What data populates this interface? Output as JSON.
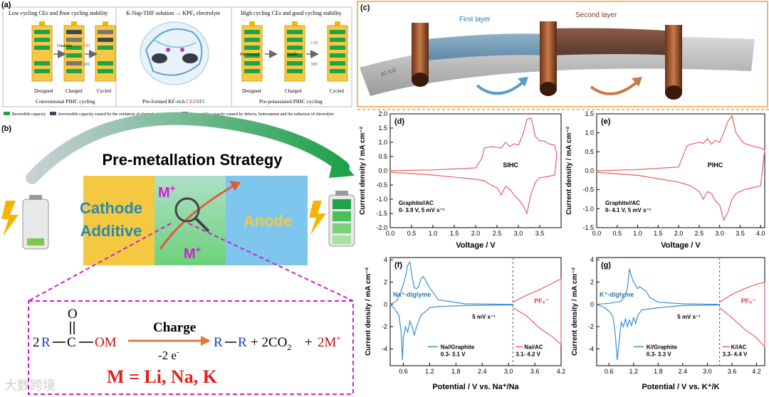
{
  "panel_a": {
    "label": "(a)",
    "col1": {
      "title": "Low cycling CEs and Poor cycling stability",
      "states": [
        "Designed",
        "Charged",
        "Cycled"
      ],
      "caption": "Conventional PIHC cycling",
      "unstable": "Unstable",
      "cei": "CEI",
      "sei": "SEI"
    },
    "col2": {
      "title": "K-Nap-THF solution → KPF₆ electrolyte",
      "caption_a": "Pre-formed KF-rich ",
      "caption_cei": "CEI",
      "caption_sep": "/",
      "caption_sei": "SEI"
    },
    "col3": {
      "title": "High cycling CEs and good cycling stability",
      "states": [
        "Designed",
        "Charged",
        "Cycled"
      ],
      "caption": "Pre-potassiated PIHC cycling",
      "preformed": "Pre-formed",
      "stable": "Stable",
      "cei": "CEI",
      "sei": "SEI"
    },
    "legend": [
      "Reversible capacity",
      "Irreversible capacity caused by the oxidation of electrolyte",
      "Irreversible capacity caused by defects, heteroatoms and the reduction of electrolyte"
    ]
  },
  "panel_b": {
    "label": "(b)",
    "title": "Pre-metallation Strategy",
    "cathode": "Cathode",
    "additive": "Additive",
    "anode": "Anode",
    "ion_top": "M",
    "ion_bottom": "M",
    "ion_charge": "+",
    "eq_coeff": "2",
    "eq_r": "R",
    "eq_c": "C",
    "eq_o": "O",
    "eq_om": "OM",
    "eq_charge": "Charge",
    "eq_electrons": "-2 e",
    "eq_minus": "-",
    "eq_product_r1": "R",
    "eq_product_r2": "R",
    "eq_plus1": "+ 2CO",
    "eq_co2_sub": "2",
    "eq_plus2": "+",
    "eq_2m": "2M",
    "m_def": "M = Li, Na, K",
    "colors": {
      "cathode": "#f5c842",
      "anode": "#7ec6ee",
      "magenta": "#d01fd0",
      "arrow_green": "#1fa24a"
    }
  },
  "panel_c": {
    "label": "(c)",
    "first_layer": "First layer",
    "second_layer": "Second layer",
    "foil": "Al foil"
  },
  "chart_data": [
    {
      "type": "line",
      "label": "(d)",
      "title": "",
      "xlabel": "Voltage / V",
      "ylabel": "Current density / mA cm⁻²",
      "xlim": [
        0,
        4.0
      ],
      "ylim": [
        -2.0,
        2.0
      ],
      "xticks": [
        "0.0",
        "0.5",
        "1.0",
        "1.5",
        "2.0",
        "2.5",
        "3.0",
        "3.5"
      ],
      "yticks": [
        "2.0",
        "1.5",
        "1.0",
        "0.5",
        "0.0",
        "-0.5",
        "-1.0",
        "-1.5",
        "-2.0"
      ],
      "annotation": "SIHC",
      "note1": "Graphite//AC",
      "note2": "0- 3.9 V, 5 mV s⁻¹",
      "series": [
        {
          "color": "#e86060",
          "x": [
            0,
            1.0,
            2.0,
            2.15,
            2.2,
            2.4,
            2.5,
            2.6,
            2.7,
            2.8,
            2.9,
            3.0,
            3.1,
            3.2,
            3.3,
            3.4,
            3.5,
            3.6,
            3.7,
            3.85,
            3.9,
            3.85,
            3.7,
            3.5,
            3.4,
            3.3,
            3.2,
            3.1,
            3.0,
            2.9,
            2.8,
            2.7,
            2.6,
            2.5,
            2.3,
            2.2,
            2.0,
            1.0,
            0
          ],
          "y": [
            0,
            0.03,
            0.1,
            0.45,
            0.8,
            0.85,
            0.82,
            0.8,
            1.0,
            0.85,
            0.95,
            0.9,
            1.25,
            1.8,
            1.85,
            1.2,
            1.05,
            1.05,
            0.95,
            0.9,
            0.6,
            -0.15,
            -0.2,
            -0.25,
            -0.4,
            -0.8,
            -1.5,
            -1.2,
            -1.0,
            -0.85,
            -0.65,
            -0.55,
            -0.85,
            -0.6,
            -0.45,
            -0.35,
            -0.3,
            -0.15,
            -0.05
          ]
        }
      ]
    },
    {
      "type": "line",
      "label": "(e)",
      "title": "",
      "xlabel": "Voltage / V",
      "ylabel": "Current density / mA cm⁻²",
      "xlim": [
        0,
        4.1
      ],
      "ylim": [
        -1.5,
        1.5
      ],
      "xticks": [
        "0.0",
        "0.5",
        "1.0",
        "1.5",
        "2.0",
        "2.5",
        "3.0",
        "3.5",
        "4.0"
      ],
      "yticks": [
        "1.5",
        "1.0",
        "0.5",
        "0.0",
        "-0.5",
        "-1.0",
        "-1.5"
      ],
      "annotation": "PIHC",
      "note1": "Graphite//AC",
      "note2": "0- 4.1 V, 5 mV s⁻¹",
      "series": [
        {
          "color": "#e86060",
          "x": [
            0,
            1.0,
            2.0,
            2.2,
            2.3,
            2.5,
            2.6,
            2.7,
            2.8,
            2.9,
            3.0,
            3.1,
            3.2,
            3.3,
            3.4,
            3.5,
            3.6,
            3.8,
            4.0,
            4.1,
            4.0,
            3.8,
            3.6,
            3.4,
            3.3,
            3.2,
            3.1,
            3.0,
            2.9,
            2.8,
            2.7,
            2.6,
            2.5,
            2.3,
            2.0,
            1.0,
            0
          ],
          "y": [
            0,
            0.03,
            0.1,
            0.65,
            0.7,
            0.75,
            0.72,
            0.85,
            0.7,
            0.8,
            0.75,
            1.0,
            1.3,
            1.45,
            1.0,
            0.85,
            0.72,
            0.65,
            0.6,
            0.55,
            -0.4,
            -0.45,
            -0.5,
            -0.6,
            -0.75,
            -1.1,
            -1.3,
            -0.9,
            -0.8,
            -0.6,
            -0.55,
            -0.75,
            -0.55,
            -0.4,
            -0.3,
            -0.12,
            -0.04
          ]
        }
      ]
    },
    {
      "type": "line",
      "label": "(f)",
      "title": "",
      "xlabel": "Potential / V vs. Na⁺/Na",
      "ylabel": "Current density / mA cm⁻²",
      "xlim": [
        0.3,
        4.2
      ],
      "ylim": [
        -5.5,
        4.2
      ],
      "xticks": [
        "0.6",
        "1.2",
        "1.8",
        "2.4",
        "3.0",
        "3.6",
        "4.2"
      ],
      "yticks": [
        "4",
        "2",
        "0",
        "-2",
        "-4"
      ],
      "annotation_blue": "Na⁺-diglyme",
      "annotation_red": "PF₆⁻",
      "scan_rate": "5 mV s⁻¹",
      "legend": [
        "Na//Graphite",
        "0.3- 3.1 V",
        "Na//AC",
        "3.1- 4.2 V"
      ],
      "series": [
        {
          "name": "Na//Graphite",
          "color": "#3a8fd0",
          "x": [
            0.3,
            0.45,
            0.5,
            0.55,
            0.6,
            0.65,
            0.7,
            0.75,
            0.8,
            0.85,
            0.9,
            0.95,
            1.0,
            1.05,
            1.1,
            1.2,
            1.4,
            2.0,
            3.1,
            3.1,
            2.0,
            1.4,
            1.2,
            1.0,
            0.95,
            0.9,
            0.85,
            0.8,
            0.75,
            0.7,
            0.65,
            0.6,
            0.58,
            0.55,
            0.5,
            0.4,
            0.35,
            0.3
          ],
          "y": [
            0,
            0.3,
            0.8,
            1.2,
            1.8,
            2.5,
            3.5,
            3.8,
            2.5,
            1.5,
            1.4,
            1.6,
            2.3,
            2.5,
            2.2,
            1.5,
            0.4,
            0.05,
            0,
            -0.05,
            -0.1,
            -0.2,
            -0.3,
            -1.0,
            -1.5,
            -2.0,
            -2.8,
            -2.0,
            -1.5,
            -2.5,
            -2.0,
            -3.0,
            -5.0,
            -2.5,
            -1.0,
            -0.4,
            -0.2,
            0
          ]
        },
        {
          "name": "Na//AC",
          "color": "#e86060",
          "x": [
            3.1,
            3.4,
            3.7,
            4.0,
            4.2,
            4.2,
            4.0,
            3.7,
            3.4,
            3.1
          ],
          "y": [
            0.2,
            0.8,
            1.3,
            1.9,
            2.3,
            -3.6,
            -2.9,
            -2.1,
            -1.0,
            -0.3
          ]
        }
      ]
    },
    {
      "type": "line",
      "label": "(g)",
      "title": "",
      "xlabel": "Potential / V vs. K⁺/K",
      "ylabel": "Current density / mA cm⁻²",
      "xlim": [
        0.3,
        4.4
      ],
      "ylim": [
        -5.5,
        4.2
      ],
      "xticks": [
        "0.6",
        "1.2",
        "1.8",
        "2.4",
        "3.0",
        "3.6",
        "4.2"
      ],
      "yticks": [
        "4",
        "2",
        "0",
        "-2",
        "-4"
      ],
      "annotation_blue": "K⁺-diglyme",
      "annotation_red": "PF₆⁻",
      "scan_rate": "5 mV s⁻¹",
      "legend": [
        "K//Graphite",
        "0.3- 3.3 V",
        "K//AC",
        "3.3- 4.4 V"
      ],
      "series": [
        {
          "name": "K//Graphite",
          "color": "#3a8fd0",
          "x": [
            0.3,
            0.6,
            0.8,
            0.9,
            1.0,
            1.05,
            1.1,
            1.15,
            1.2,
            1.3,
            1.35,
            1.45,
            1.5,
            1.6,
            1.8,
            2.4,
            3.3,
            3.3,
            2.4,
            1.8,
            1.4,
            1.3,
            1.25,
            1.2,
            1.15,
            1.1,
            1.05,
            1.0,
            0.95,
            0.9,
            0.85,
            0.8,
            0.75,
            0.7,
            0.65,
            0.5,
            0.3
          ],
          "y": [
            0,
            0.1,
            0.2,
            0.3,
            0.8,
            1.5,
            3.2,
            2.5,
            2.0,
            1.4,
            1.6,
            1.3,
            1.2,
            0.6,
            0.2,
            0.05,
            0,
            -0.05,
            -0.1,
            -0.3,
            -0.5,
            -1.0,
            -1.7,
            -1.2,
            -1.9,
            -1.4,
            -2.0,
            -1.3,
            -2.0,
            -1.6,
            -3.2,
            -5.0,
            -2.5,
            -1.2,
            -0.8,
            -0.3,
            0
          ]
        },
        {
          "name": "K//AC",
          "color": "#e86060",
          "x": [
            3.3,
            3.6,
            3.9,
            4.2,
            4.4,
            4.4,
            4.2,
            3.9,
            3.6,
            3.3
          ],
          "y": [
            0.2,
            0.9,
            1.4,
            1.8,
            2.0,
            -3.8,
            -3.0,
            -2.2,
            -1.2,
            -0.3
          ]
        }
      ]
    }
  ],
  "watermark": "大数跨境"
}
